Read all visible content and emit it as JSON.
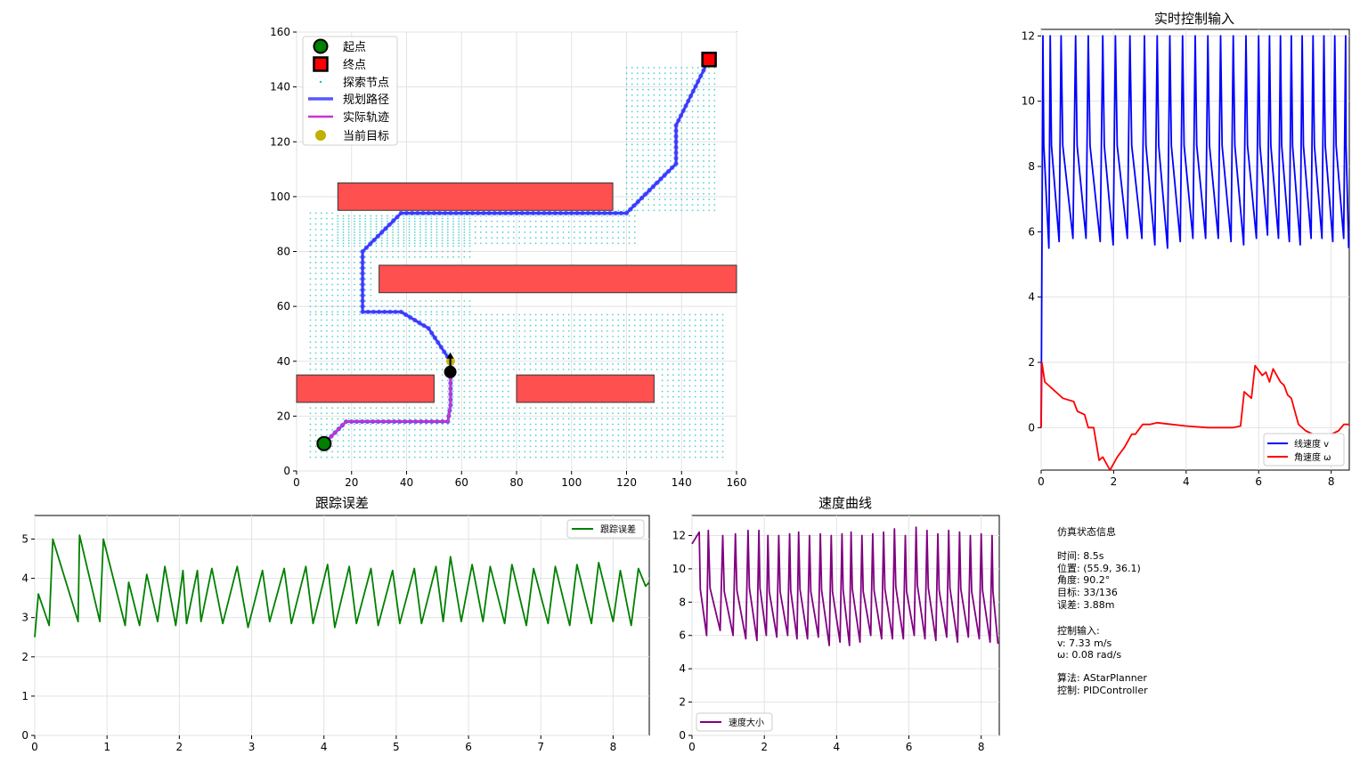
{
  "chart_data": [
    {
      "type": "scatter",
      "title": "",
      "xlabel": "",
      "ylabel": "",
      "xlim": [
        0,
        160
      ],
      "ylim": [
        0,
        160
      ],
      "xticks": [
        0,
        20,
        40,
        60,
        80,
        100,
        120,
        140,
        160
      ],
      "yticks": [
        0,
        20,
        40,
        60,
        80,
        100,
        120,
        140,
        160
      ],
      "grid": true,
      "legend_position": "upper-left",
      "legend": [
        "起点",
        "终点",
        "探索节点",
        "规划路径",
        "实际轨迹",
        "当前目标"
      ],
      "start": [
        10,
        10
      ],
      "goal": [
        150,
        150
      ],
      "current_target": [
        56,
        40
      ],
      "robot": {
        "position": [
          55.9,
          36.1
        ],
        "heading_deg": 90.2
      },
      "obstacles": [
        {
          "x": 15,
          "y": 95,
          "w": 100,
          "h": 10
        },
        {
          "x": 30,
          "y": 65,
          "w": 130,
          "h": 10
        },
        {
          "x": 0,
          "y": 25,
          "w": 50,
          "h": 10
        },
        {
          "x": 80,
          "y": 25,
          "w": 50,
          "h": 10
        }
      ],
      "explored_regions": [
        {
          "x": [
            5,
            155
          ],
          "y": [
            5,
            58
          ]
        },
        {
          "x": [
            5,
            63
          ],
          "y": [
            58,
            95
          ]
        },
        {
          "x": [
            15,
            123
          ],
          "y": [
            83,
            95
          ]
        },
        {
          "x": [
            120,
            153
          ],
          "y": [
            95,
            148
          ]
        }
      ],
      "planned_path": [
        [
          10,
          10
        ],
        [
          18,
          18
        ],
        [
          55,
          18
        ],
        [
          56,
          24
        ],
        [
          56,
          40
        ],
        [
          48,
          52
        ],
        [
          38,
          58
        ],
        [
          24,
          58
        ],
        [
          24,
          80
        ],
        [
          38,
          94
        ],
        [
          120,
          94
        ],
        [
          138,
          112
        ],
        [
          138,
          126
        ],
        [
          146,
          142
        ],
        [
          150,
          150
        ]
      ],
      "actual_trajectory": [
        [
          10,
          10
        ],
        [
          18,
          18
        ],
        [
          55,
          18
        ],
        [
          56,
          24
        ],
        [
          55.9,
          36.1
        ]
      ]
    },
    {
      "type": "line",
      "title": "实时控制输入",
      "xlabel": "",
      "ylabel": "",
      "xlim": [
        0,
        8.5
      ],
      "ylim": [
        -1.3,
        12.2
      ],
      "xticks": [
        0,
        2,
        4,
        6,
        8
      ],
      "yticks": [
        0,
        2,
        4,
        6,
        8,
        10,
        12
      ],
      "grid": true,
      "legend_position": "lower-right",
      "series": [
        {
          "name": "线速度 v",
          "color": "#0000ff",
          "type": "sawtooth",
          "peaks_x": [
            0.05,
            0.25,
            0.55,
            0.95,
            1.3,
            1.7,
            2.05,
            2.45,
            2.85,
            3.2,
            3.55,
            3.9,
            4.25,
            4.6,
            4.95,
            5.3,
            5.65,
            6.0,
            6.3,
            6.6,
            6.9,
            7.2,
            7.5,
            7.8,
            8.1,
            8.4
          ],
          "peak_value": 12.0,
          "troughs": [
            5.5,
            5.7,
            5.8,
            5.8,
            5.7,
            5.6,
            5.8,
            5.8,
            5.6,
            5.5,
            5.7,
            5.8,
            5.8,
            5.8,
            5.7,
            5.6,
            5.8,
            5.9,
            5.8,
            5.7,
            5.6,
            5.8,
            5.8,
            5.7,
            5.8,
            5.5
          ]
        },
        {
          "name": "角速度 ω",
          "color": "#ff0000",
          "x": [
            0,
            0.02,
            0.1,
            0.3,
            0.6,
            0.9,
            1.0,
            1.2,
            1.3,
            1.35,
            1.45,
            1.6,
            1.7,
            1.9,
            2.0,
            2.1,
            2.3,
            2.4,
            2.5,
            2.6,
            2.8,
            3.0,
            3.2,
            3.6,
            4.0,
            4.6,
            5.0,
            5.3,
            5.5,
            5.6,
            5.8,
            5.9,
            6.1,
            6.2,
            6.3,
            6.4,
            6.5,
            6.6,
            6.7,
            6.8,
            6.9,
            7.0,
            7.1,
            7.3,
            7.5,
            7.8,
            8.0,
            8.2,
            8.35,
            8.5
          ],
          "y": [
            0,
            2.0,
            1.4,
            1.2,
            0.9,
            0.8,
            0.5,
            0.4,
            0,
            0,
            0,
            -1.0,
            -0.9,
            -1.3,
            -1.1,
            -0.9,
            -0.6,
            -0.4,
            -0.2,
            -0.2,
            0.1,
            0.1,
            0.15,
            0.1,
            0.05,
            0.0,
            0.0,
            0.0,
            0.05,
            1.1,
            0.9,
            1.9,
            1.6,
            1.7,
            1.4,
            1.8,
            1.6,
            1.4,
            1.3,
            1.0,
            0.9,
            0.5,
            0.1,
            -0.1,
            -0.2,
            -0.2,
            -0.2,
            -0.1,
            0.1,
            0.1
          ]
        }
      ]
    },
    {
      "type": "line",
      "title": "跟踪误差",
      "xlabel": "",
      "ylabel": "",
      "xlim": [
        0,
        8.5
      ],
      "ylim": [
        0,
        5.6
      ],
      "xticks": [
        0,
        1,
        2,
        3,
        4,
        5,
        6,
        7,
        8
      ],
      "yticks": [
        0,
        1,
        2,
        3,
        4,
        5
      ],
      "grid": true,
      "legend_position": "upper-right",
      "series": [
        {
          "name": "跟踪误差",
          "color": "#008000",
          "x": [
            0,
            0.05,
            0.2,
            0.25,
            0.6,
            0.62,
            0.9,
            0.95,
            1.25,
            1.3,
            1.45,
            1.55,
            1.7,
            1.8,
            1.95,
            2.05,
            2.1,
            2.25,
            2.3,
            2.45,
            2.6,
            2.8,
            2.95,
            3.15,
            3.25,
            3.45,
            3.55,
            3.75,
            3.85,
            4.05,
            4.15,
            4.35,
            4.45,
            4.65,
            4.75,
            4.95,
            5.05,
            5.25,
            5.35,
            5.55,
            5.65,
            5.75,
            5.9,
            6.05,
            6.2,
            6.3,
            6.5,
            6.6,
            6.8,
            6.9,
            7.1,
            7.2,
            7.4,
            7.5,
            7.7,
            7.8,
            8.0,
            8.1,
            8.25,
            8.35,
            8.45,
            8.5
          ],
          "y": [
            2.5,
            3.6,
            2.8,
            5.0,
            2.9,
            5.1,
            2.9,
            5.0,
            2.8,
            3.9,
            2.8,
            4.1,
            2.9,
            4.3,
            2.8,
            4.2,
            2.85,
            4.2,
            2.9,
            4.25,
            2.85,
            4.3,
            2.75,
            4.2,
            2.9,
            4.25,
            2.85,
            4.3,
            2.85,
            4.35,
            2.75,
            4.3,
            2.85,
            4.25,
            2.8,
            4.2,
            2.85,
            4.25,
            2.85,
            4.3,
            2.9,
            4.55,
            2.9,
            4.35,
            2.9,
            4.3,
            2.85,
            4.35,
            2.8,
            4.25,
            2.85,
            4.3,
            2.8,
            4.35,
            2.85,
            4.4,
            2.9,
            4.2,
            2.8,
            4.25,
            3.8,
            3.9
          ]
        }
      ]
    },
    {
      "type": "line",
      "title": "速度曲线",
      "xlabel": "",
      "ylabel": "",
      "xlim": [
        0,
        8.5
      ],
      "ylim": [
        0,
        13.2
      ],
      "xticks": [
        0,
        2,
        4,
        6,
        8
      ],
      "yticks": [
        0,
        2,
        4,
        6,
        8,
        10,
        12
      ],
      "grid": true,
      "legend_position": "lower-left",
      "series": [
        {
          "name": "速度大小",
          "color": "#800080",
          "type": "sawtooth",
          "peaks_x": [
            0.2,
            0.45,
            0.85,
            1.2,
            1.55,
            1.85,
            2.1,
            2.4,
            2.7,
            2.95,
            3.25,
            3.55,
            3.85,
            4.15,
            4.4,
            4.7,
            5.0,
            5.3,
            5.6,
            5.9,
            6.2,
            6.5,
            6.8,
            7.1,
            7.4,
            7.7,
            8.0,
            8.3
          ],
          "peaks": [
            12.2,
            12.3,
            12.0,
            12.1,
            12.3,
            12.3,
            12.0,
            12.0,
            12.1,
            12.2,
            12.0,
            12.1,
            12.0,
            12.1,
            12.2,
            12.0,
            12.1,
            12.2,
            12.4,
            12.0,
            12.5,
            12.3,
            12.1,
            12.3,
            12.2,
            12.0,
            12.1,
            12.0
          ],
          "troughs": [
            6.0,
            6.3,
            6.0,
            5.8,
            5.7,
            6.0,
            5.9,
            6.0,
            5.8,
            5.8,
            5.9,
            5.4,
            5.6,
            5.4,
            5.6,
            6.0,
            5.8,
            5.8,
            5.8,
            6.0,
            5.8,
            5.7,
            5.9,
            5.6,
            5.9,
            5.8,
            5.6,
            5.5
          ]
        }
      ]
    }
  ],
  "info": {
    "section_title": "仿真状态信息",
    "time": "时间: 8.5s",
    "position": "位置: (55.9, 36.1)",
    "angle": "角度: 90.2°",
    "target": "目标: 33/136",
    "error": "误差: 3.88m",
    "control_title": "控制输入:",
    "v": "v: 7.33 m/s",
    "omega": "ω: 0.08 rad/s",
    "algorithm": "算法: AStarPlanner",
    "controller": "控制: PIDController"
  },
  "colors": {
    "obstacle": "#ff5050",
    "explored": "#20c0c0",
    "planned": "#3a3aff",
    "actual": "#cc33cc",
    "start": "#008000",
    "goal": "#ff0000",
    "target": "#c0b000"
  }
}
